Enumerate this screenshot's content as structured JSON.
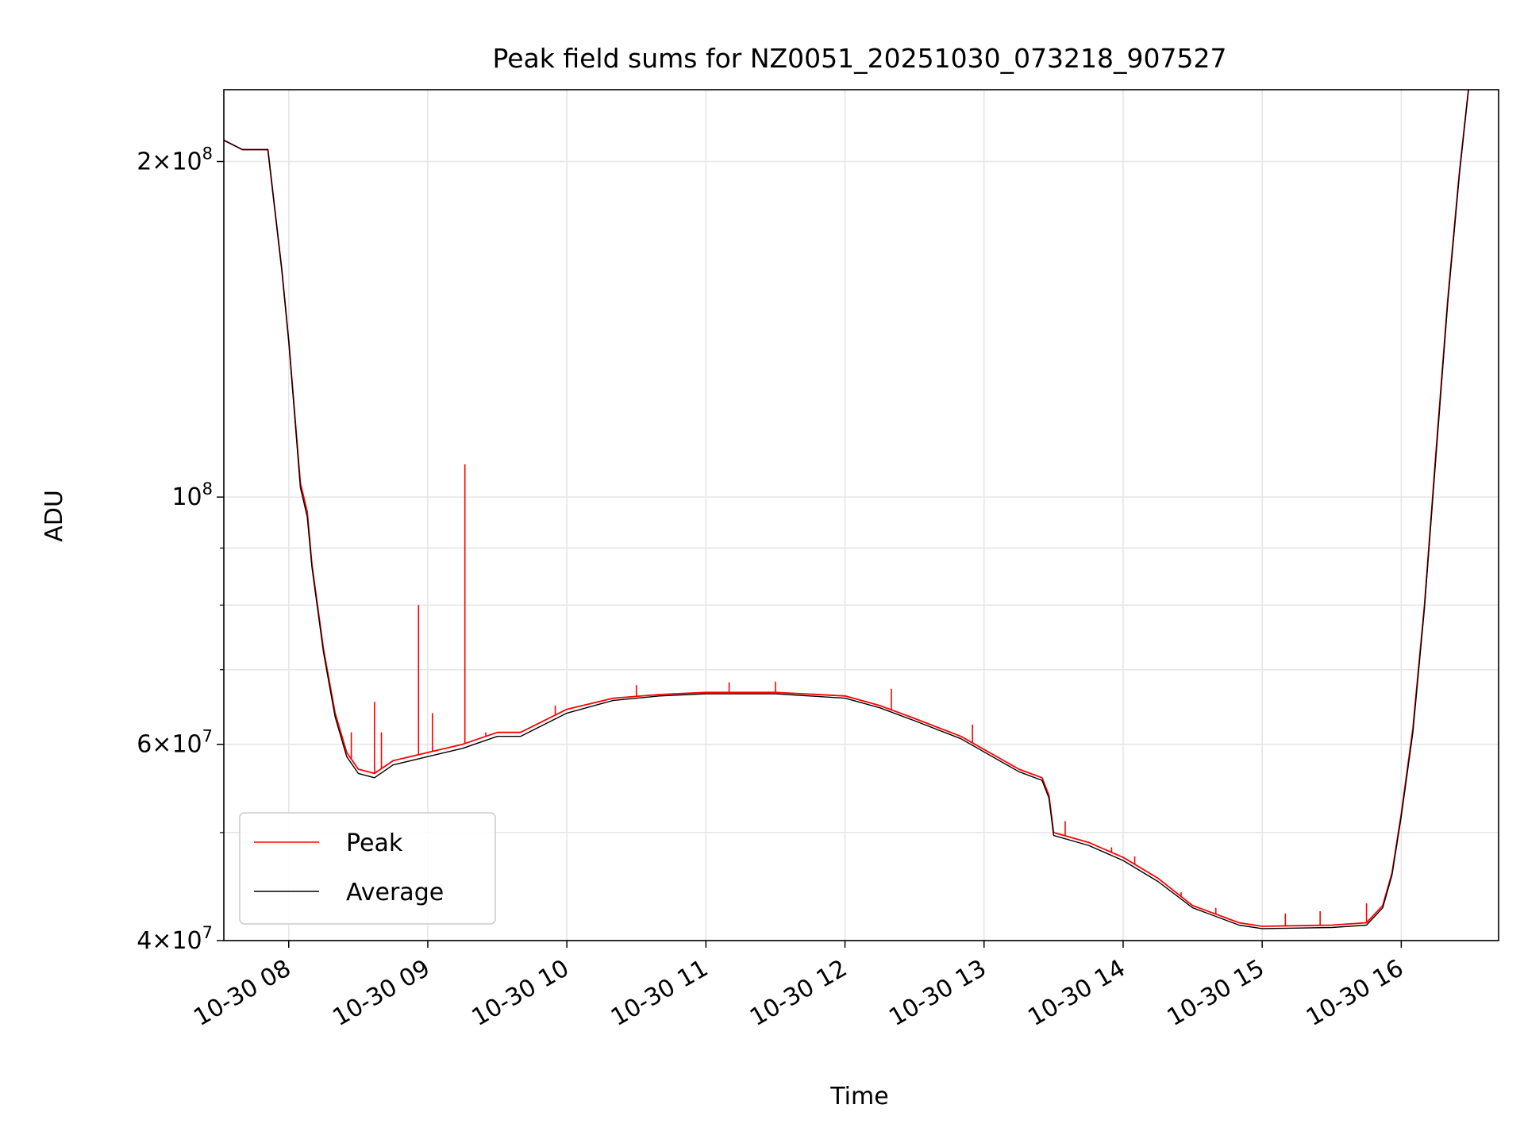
{
  "chart_data": {
    "type": "line",
    "title": "Peak field sums for NZ0051_20251030_073218_907527",
    "xlabel": "Time",
    "ylabel": "ADU",
    "yscale": "log",
    "xlim": [
      "2025-10-30 07:32",
      "2025-10-30 16:42"
    ],
    "ylim": [
      40000000,
      232000000
    ],
    "x_ticks": [
      {
        "value": "2025-10-30 08:00",
        "label": "10-30 08"
      },
      {
        "value": "2025-10-30 09:00",
        "label": "10-30 09"
      },
      {
        "value": "2025-10-30 10:00",
        "label": "10-30 10"
      },
      {
        "value": "2025-10-30 11:00",
        "label": "10-30 11"
      },
      {
        "value": "2025-10-30 12:00",
        "label": "10-30 12"
      },
      {
        "value": "2025-10-30 13:00",
        "label": "10-30 13"
      },
      {
        "value": "2025-10-30 14:00",
        "label": "10-30 14"
      },
      {
        "value": "2025-10-30 15:00",
        "label": "10-30 15"
      },
      {
        "value": "2025-10-30 16:00",
        "label": "10-30 16"
      }
    ],
    "y_ticks": [
      {
        "value": 40000000,
        "mant": "4",
        "exp": "7"
      },
      {
        "value": 60000000,
        "mant": "6",
        "exp": "7"
      },
      {
        "value": 100000000,
        "mant": "",
        "exp": "8"
      },
      {
        "value": 200000000,
        "mant": "2",
        "exp": "8"
      }
    ],
    "y_minor_ticks": [
      50000000,
      70000000,
      80000000,
      90000000
    ],
    "grid": true,
    "legend_position": "lower-left",
    "series": [
      {
        "name": "Peak",
        "color": "#ff0000",
        "x": [
          "2025-10-30 07:32",
          "2025-10-30 07:40",
          "2025-10-30 07:51",
          "2025-10-30 07:57",
          "2025-10-30 08:00",
          "2025-10-30 08:05",
          "2025-10-30 08:08",
          "2025-10-30 08:10",
          "2025-10-30 08:15",
          "2025-10-30 08:20",
          "2025-10-30 08:25",
          "2025-10-30 08:30",
          "2025-10-30 08:37",
          "2025-10-30 08:45",
          "2025-10-30 09:00",
          "2025-10-30 09:15",
          "2025-10-30 09:30",
          "2025-10-30 09:40",
          "2025-10-30 10:00",
          "2025-10-30 10:20",
          "2025-10-30 10:40",
          "2025-10-30 11:00",
          "2025-10-30 11:30",
          "2025-10-30 12:00",
          "2025-10-30 12:15",
          "2025-10-30 12:30",
          "2025-10-30 12:50",
          "2025-10-30 13:15",
          "2025-10-30 13:25",
          "2025-10-30 13:28",
          "2025-10-30 13:30",
          "2025-10-30 13:45",
          "2025-10-30 14:00",
          "2025-10-30 14:15",
          "2025-10-30 14:30",
          "2025-10-30 14:50",
          "2025-10-30 15:00",
          "2025-10-30 15:30",
          "2025-10-30 15:45",
          "2025-10-30 15:52",
          "2025-10-30 15:56",
          "2025-10-30 16:00",
          "2025-10-30 16:05",
          "2025-10-30 16:10",
          "2025-10-30 16:15",
          "2025-10-30 16:20",
          "2025-10-30 16:25",
          "2025-10-30 16:29"
        ],
        "values": [
          209000000,
          205000000,
          205000000,
          160000000,
          138000000,
          103000000,
          97000000,
          87000000,
          73000000,
          64000000,
          59000000,
          57000000,
          56500000,
          58000000,
          59000000,
          60000000,
          61500000,
          61500000,
          64500000,
          66000000,
          66500000,
          66800000,
          66800000,
          66300000,
          65000000,
          63300000,
          61000000,
          57000000,
          56000000,
          54000000,
          50000000,
          49000000,
          47500000,
          45500000,
          43000000,
          41500000,
          41200000,
          41300000,
          41500000,
          43000000,
          46000000,
          52000000,
          62000000,
          80000000,
          110000000,
          150000000,
          195000000,
          232000000
        ]
      },
      {
        "name": "Average",
        "color": "#000000",
        "x": [
          "2025-10-30 07:32",
          "2025-10-30 07:40",
          "2025-10-30 07:51",
          "2025-10-30 07:57",
          "2025-10-30 08:00",
          "2025-10-30 08:05",
          "2025-10-30 08:08",
          "2025-10-30 08:10",
          "2025-10-30 08:15",
          "2025-10-30 08:20",
          "2025-10-30 08:25",
          "2025-10-30 08:30",
          "2025-10-30 08:37",
          "2025-10-30 08:45",
          "2025-10-30 09:00",
          "2025-10-30 09:15",
          "2025-10-30 09:30",
          "2025-10-30 09:40",
          "2025-10-30 10:00",
          "2025-10-30 10:20",
          "2025-10-30 10:40",
          "2025-10-30 11:00",
          "2025-10-30 11:30",
          "2025-10-30 12:00",
          "2025-10-30 12:15",
          "2025-10-30 12:30",
          "2025-10-30 12:50",
          "2025-10-30 13:15",
          "2025-10-30 13:25",
          "2025-10-30 13:28",
          "2025-10-30 13:30",
          "2025-10-30 13:45",
          "2025-10-30 14:00",
          "2025-10-30 14:15",
          "2025-10-30 14:30",
          "2025-10-30 14:50",
          "2025-10-30 15:00",
          "2025-10-30 15:30",
          "2025-10-30 15:45",
          "2025-10-30 15:52",
          "2025-10-30 15:56",
          "2025-10-30 16:00",
          "2025-10-30 16:05",
          "2025-10-30 16:10",
          "2025-10-30 16:15",
          "2025-10-30 16:20",
          "2025-10-30 16:25",
          "2025-10-30 16:29"
        ],
        "values": [
          209000000,
          205000000,
          205000000,
          160000000,
          138000000,
          102000000,
          96000000,
          86500000,
          72500000,
          63500000,
          58500000,
          56500000,
          56000000,
          57500000,
          58500000,
          59500000,
          61000000,
          61000000,
          64000000,
          65700000,
          66300000,
          66600000,
          66600000,
          66000000,
          64700000,
          63000000,
          60700000,
          56700000,
          55700000,
          53700000,
          49700000,
          48700000,
          47200000,
          45200000,
          42800000,
          41300000,
          41000000,
          41100000,
          41300000,
          42800000,
          45800000,
          51700000,
          61500000,
          79500000,
          109000000,
          149000000,
          194000000,
          232000000
        ]
      }
    ],
    "peak_spikes": {
      "x": [
        "2025-10-30 08:27",
        "2025-10-30 08:37",
        "2025-10-30 08:40",
        "2025-10-30 08:56",
        "2025-10-30 09:02",
        "2025-10-30 09:16",
        "2025-10-30 09:25",
        "2025-10-30 09:55",
        "2025-10-30 10:30",
        "2025-10-30 11:10",
        "2025-10-30 11:30",
        "2025-10-30 12:20",
        "2025-10-30 12:55",
        "2025-10-30 13:35",
        "2025-10-30 13:55",
        "2025-10-30 14:05",
        "2025-10-30 14:25",
        "2025-10-30 14:40",
        "2025-10-30 15:10",
        "2025-10-30 15:25",
        "2025-10-30 15:45"
      ],
      "values": [
        61500000,
        65500000,
        61500000,
        80000000,
        64000000,
        107000000,
        61500000,
        65000000,
        67800000,
        68200000,
        68300000,
        67300000,
        62500000,
        51200000,
        48500000,
        47600000,
        44200000,
        42800000,
        42300000,
        42500000,
        43200000
      ]
    }
  }
}
